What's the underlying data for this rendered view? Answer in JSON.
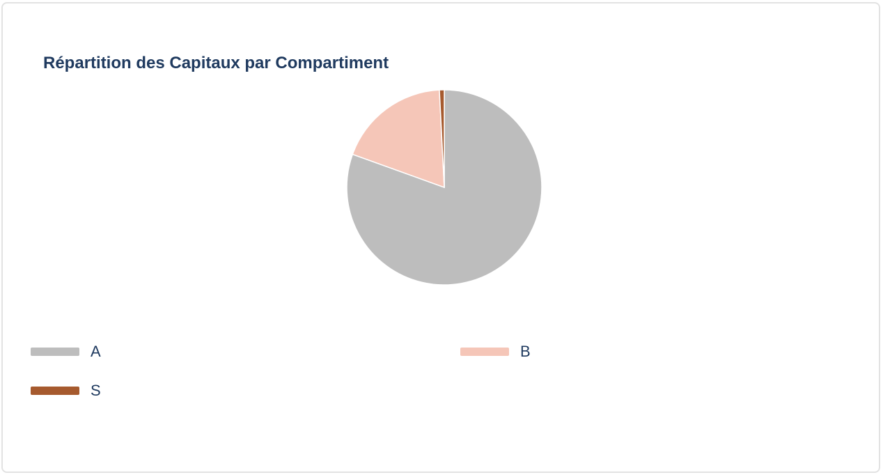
{
  "chart_data": {
    "type": "pie",
    "title": "Répartition des Capitaux par Compartiment",
    "categories": [
      "A",
      "B",
      "S"
    ],
    "values": [
      80.5,
      18.7,
      0.8
    ],
    "colors": [
      "#bdbdbd",
      "#f5c6b8",
      "#a65a2e"
    ],
    "legend_position": "bottom"
  }
}
